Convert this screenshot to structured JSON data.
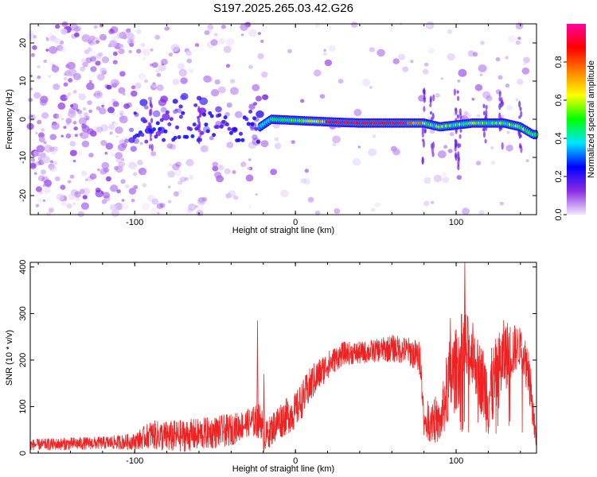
{
  "title": "S197.2025.265.03.42.G26",
  "chart_data": [
    {
      "type": "heatmap",
      "name": "spectrogram",
      "title": "S197.2025.265.03.42.G26",
      "xlabel": "Height of straight line (km)",
      "ylabel": "Frequency (Hz)",
      "xlim": [
        -165,
        150
      ],
      "ylim": [
        -25,
        25
      ],
      "xticks": [
        -100,
        0,
        100
      ],
      "yticks": [
        -20,
        -10,
        0,
        10,
        20
      ],
      "ridge": {
        "description_points_km_hz": [
          [
            -22,
            -2
          ],
          [
            -15,
            0
          ],
          [
            10,
            -0.5
          ],
          [
            40,
            -1
          ],
          [
            70,
            -1
          ],
          [
            80,
            -1
          ],
          [
            90,
            -2
          ],
          [
            110,
            -1
          ],
          [
            130,
            -1
          ],
          [
            140,
            -2
          ],
          [
            148,
            -4
          ]
        ]
      },
      "colorbar": {
        "label": "Normalized spectral amplitude",
        "ticks": [
          0.0,
          0.2,
          0.4,
          0.6,
          0.8
        ],
        "range": [
          0,
          1
        ],
        "colors": [
          "#f0e8ff",
          "#8a2be2",
          "#0000ff",
          "#00e5ff",
          "#00ff00",
          "#ffff00",
          "#ff8000",
          "#ff0000",
          "#ff00a0"
        ]
      }
    },
    {
      "type": "line",
      "name": "snr",
      "xlabel": "Height of straight line (km)",
      "ylabel": "SNR (10 * v/v)",
      "xlim": [
        -165,
        150
      ],
      "ylim": [
        0,
        410
      ],
      "xticks": [
        -100,
        0,
        100
      ],
      "yticks": [
        0,
        100,
        200,
        300,
        400
      ],
      "color": "#ee2222",
      "envelope": {
        "x": [
          -165,
          -140,
          -120,
          -100,
          -90,
          -80,
          -60,
          -40,
          -30,
          -21,
          -20,
          -10,
          0,
          10,
          20,
          30,
          40,
          50,
          60,
          70,
          75,
          78,
          80,
          85,
          90,
          95,
          100,
          105,
          110,
          120,
          130,
          140,
          145,
          150
        ],
        "mean": [
          18,
          20,
          22,
          25,
          40,
          35,
          40,
          50,
          65,
          70,
          30,
          70,
          90,
          150,
          190,
          215,
          215,
          220,
          225,
          220,
          210,
          200,
          60,
          80,
          60,
          150,
          180,
          220,
          210,
          120,
          210,
          230,
          180,
          20
        ],
        "spread": [
          12,
          14,
          14,
          18,
          30,
          35,
          35,
          35,
          30,
          40,
          30,
          40,
          40,
          40,
          30,
          25,
          25,
          25,
          30,
          30,
          35,
          40,
          30,
          60,
          40,
          90,
          90,
          100,
          60,
          90,
          80,
          40,
          60,
          20
        ]
      },
      "spikes": [
        [
          -24,
          285
        ],
        [
          -20,
          170
        ],
        [
          105,
          410
        ],
        [
          110,
          280
        ],
        [
          96,
          290
        ],
        [
          140,
          260
        ]
      ]
    }
  ]
}
